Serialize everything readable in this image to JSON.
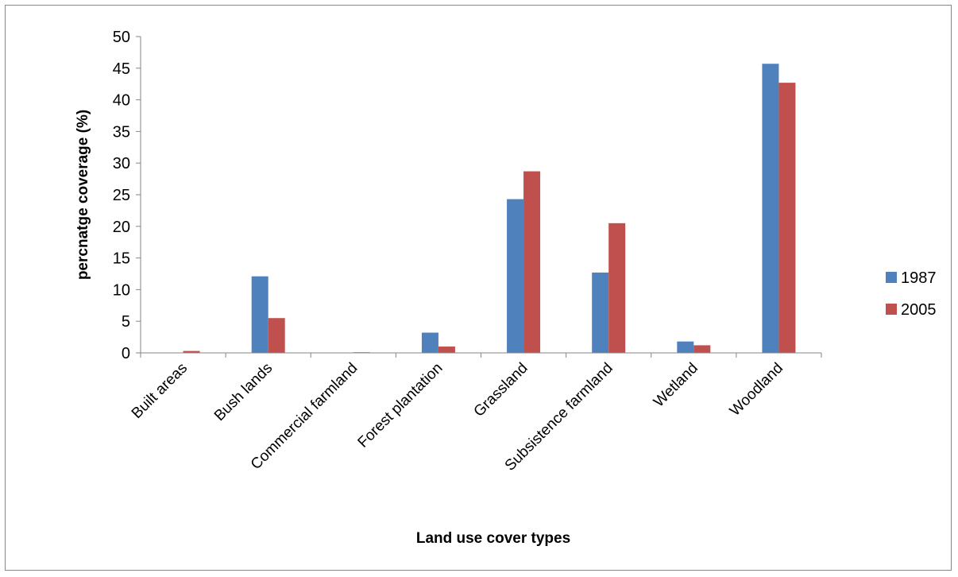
{
  "chart_data": {
    "type": "bar",
    "title": "",
    "xlabel": "Land use cover types",
    "ylabel": "percnatge coverage (%)",
    "categories": [
      "Built areas",
      "Bush lands",
      "Commercial farmland",
      "Forest plantation",
      "Grassland",
      "Subsistence farmland",
      "Wetland",
      "Woodland"
    ],
    "series": [
      {
        "name": "1987",
        "color": "#4F81BD",
        "values": [
          0,
          12.1,
          0.05,
          3.2,
          24.3,
          12.7,
          1.8,
          45.7
        ]
      },
      {
        "name": "2005",
        "color": "#C0504D",
        "values": [
          0.3,
          5.5,
          0.1,
          1.0,
          28.7,
          20.5,
          1.2,
          42.7
        ]
      }
    ],
    "ylim": [
      0,
      50
    ],
    "yticks": [
      0,
      5,
      10,
      15,
      20,
      25,
      30,
      35,
      40,
      45,
      50
    ],
    "grid": false,
    "legend_position": "right"
  }
}
